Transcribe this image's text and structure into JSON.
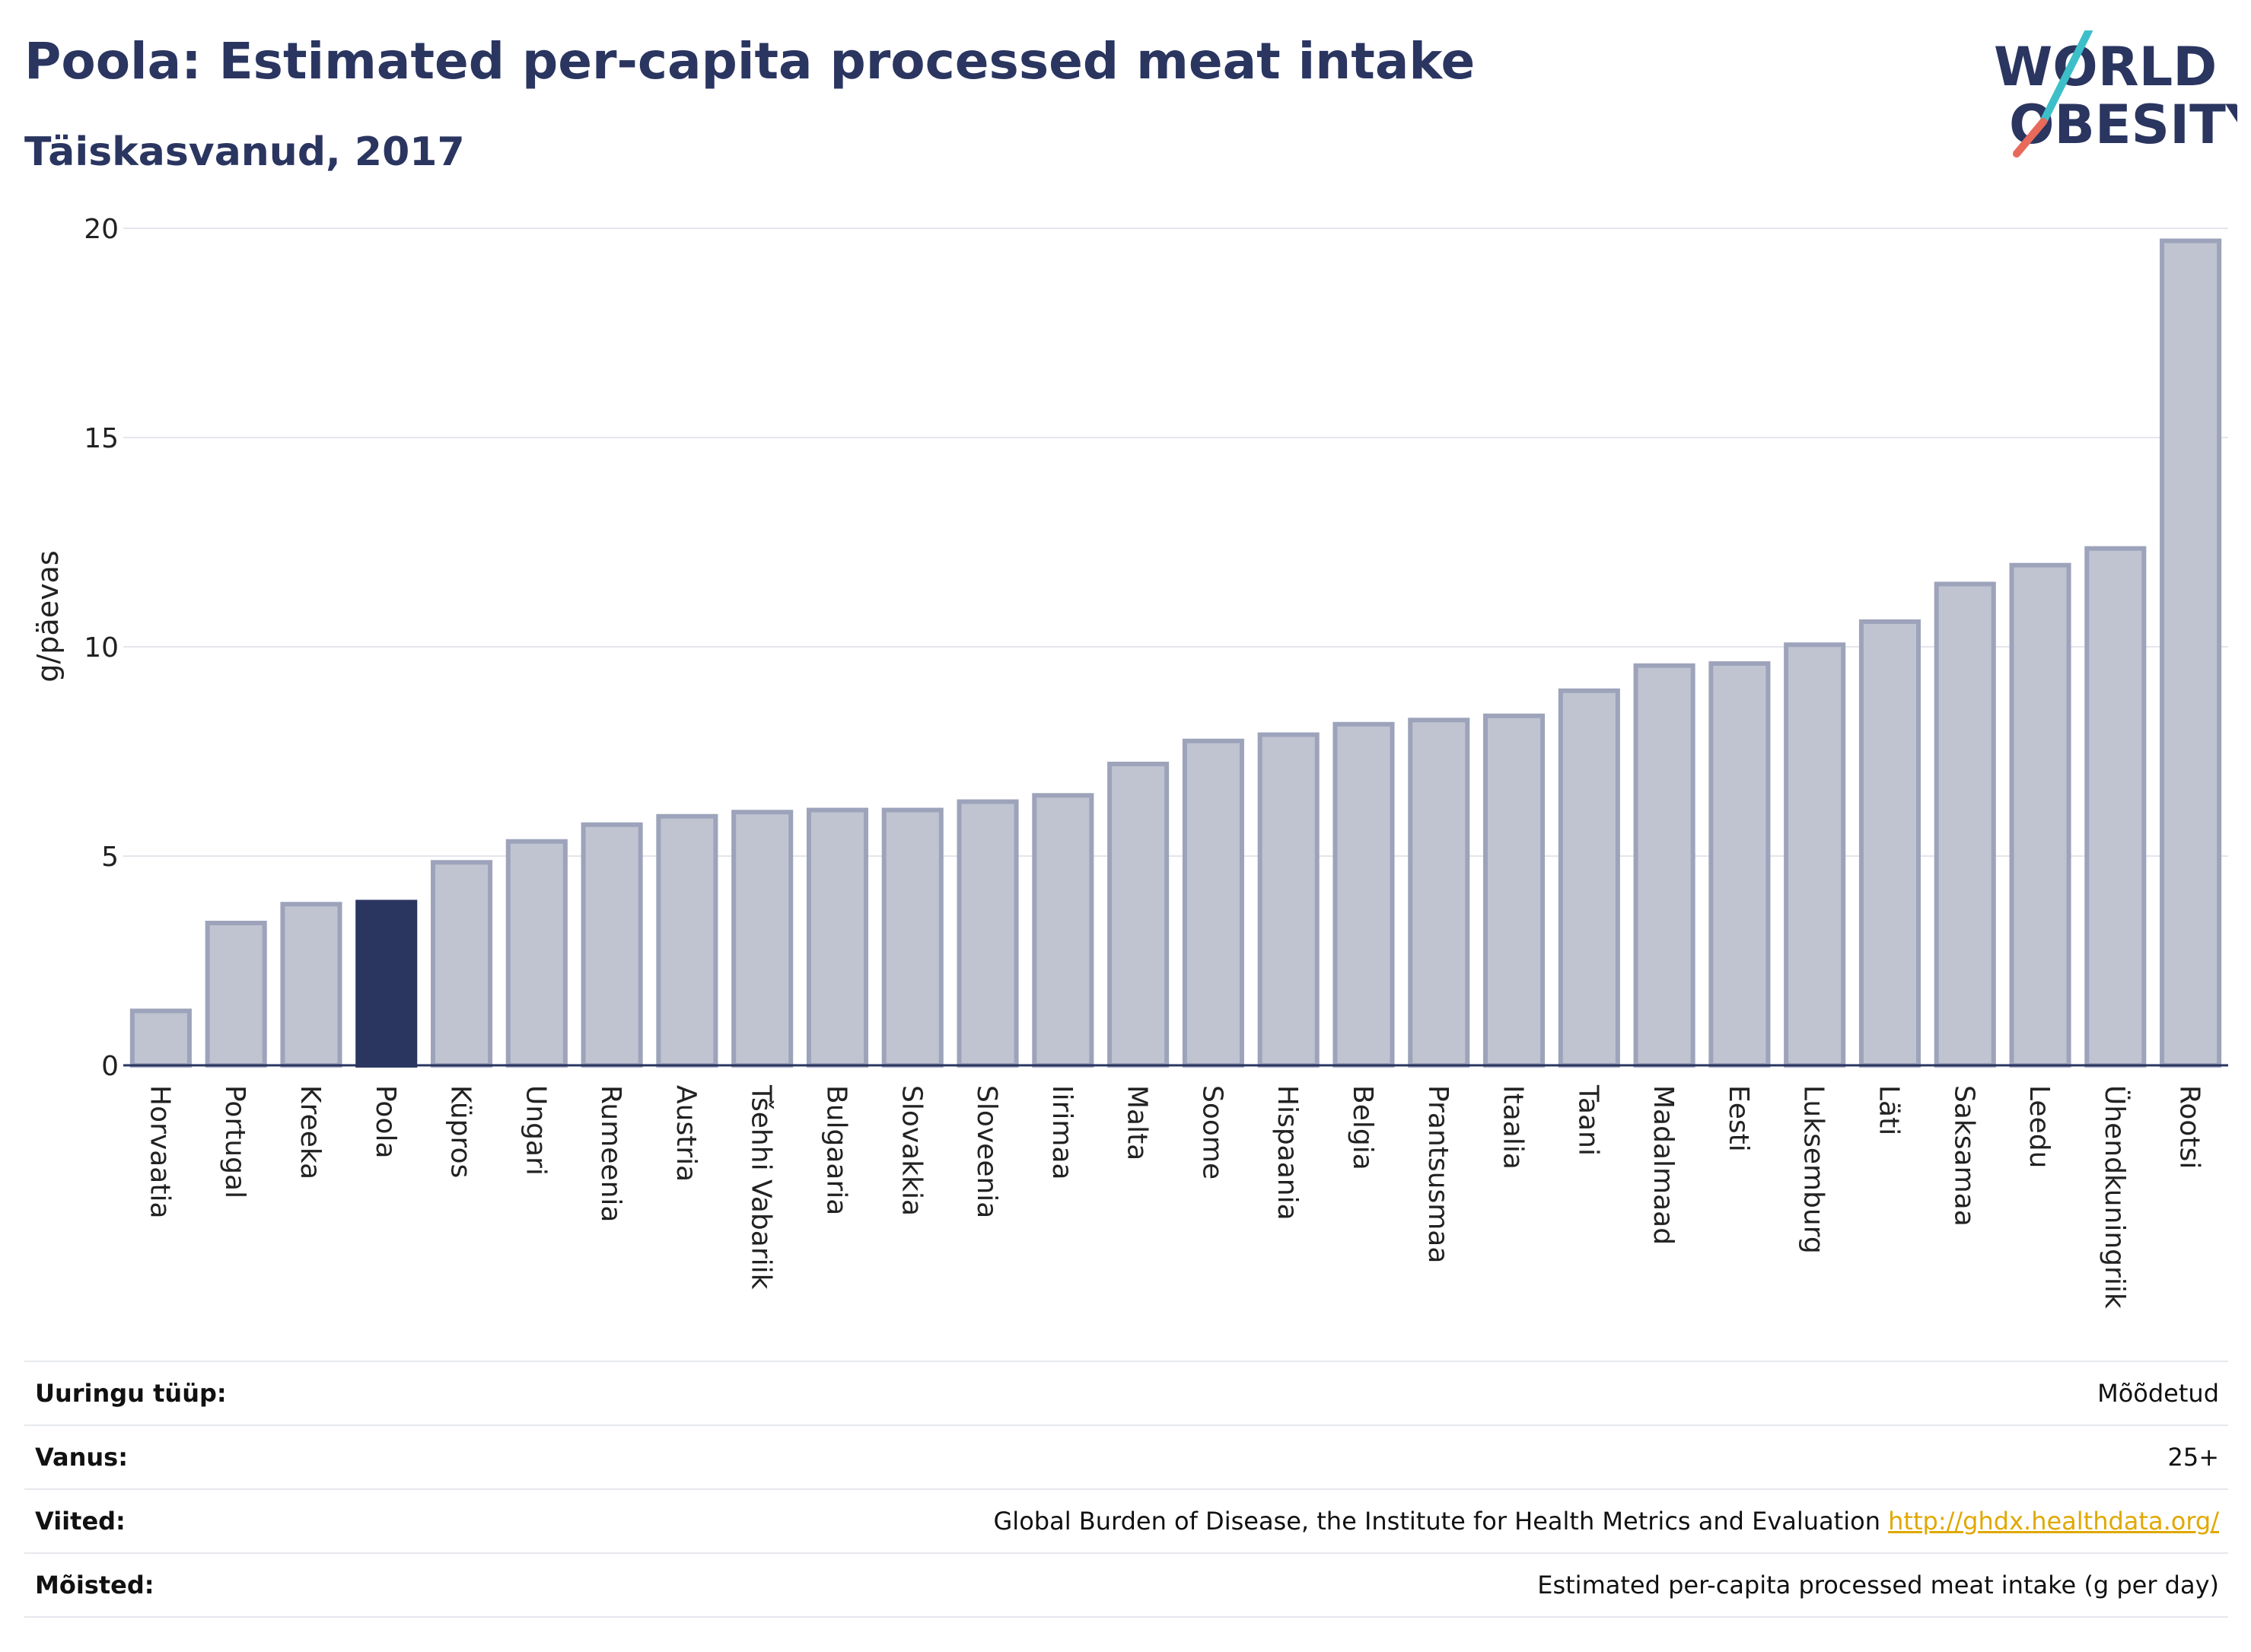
{
  "header": {
    "title": "Poola: Estimated per-capita processed meat intake",
    "subtitle": "Täiskasvanud, 2017"
  },
  "logo": {
    "line1": "WORLD",
    "line2": "OBESITY",
    "accent_teal": "#3dbfc9",
    "accent_coral": "#e86a5a",
    "text_color": "#2a3560"
  },
  "colors": {
    "bar_default": "#c0c4d1",
    "bar_border": "#9da3ba",
    "bar_highlight": "#2a3560"
  },
  "chart_data": {
    "type": "bar",
    "ylabel": "g/päevas",
    "ylim": [
      0,
      20
    ],
    "yticks": [
      0,
      5,
      10,
      15,
      20
    ],
    "grid": true,
    "highlight": "Poola",
    "categories": [
      "Horvaatia",
      "Portugal",
      "Kreeka",
      "Poola",
      "Küpros",
      "Ungari",
      "Rumeenia",
      "Austria",
      "Tšehhi Vabariik",
      "Bulgaaria",
      "Slovakkia",
      "Sloveenia",
      "Iirimaa",
      "Malta",
      "Soome",
      "Hispaania",
      "Belgia",
      "Prantsusmaa",
      "Itaalia",
      "Taani",
      "Madalmaad",
      "Eesti",
      "Luksemburg",
      "Läti",
      "Saksamaa",
      "Leedu",
      "Ühendkuningriik",
      "Rootsi"
    ],
    "values": [
      1.3,
      3.4,
      3.85,
      3.9,
      4.85,
      5.35,
      5.75,
      5.95,
      6.05,
      6.1,
      6.1,
      6.3,
      6.45,
      7.2,
      7.75,
      7.9,
      8.15,
      8.25,
      8.35,
      8.95,
      9.55,
      9.6,
      10.05,
      10.6,
      11.5,
      11.95,
      12.35,
      19.7
    ]
  },
  "info": {
    "rows": [
      {
        "key": "Uuringu tüüp:",
        "value": "Mõõdetud"
      },
      {
        "key": "Vanus:",
        "value": "25+"
      },
      {
        "key": "Viited:",
        "value": "Global Burden of Disease, the Institute for Health Metrics and Evaluation",
        "link": "http://ghdx.healthdata.org/"
      },
      {
        "key": "Mõisted:",
        "value": "Estimated per-capita processed meat intake (g per day)"
      }
    ]
  }
}
